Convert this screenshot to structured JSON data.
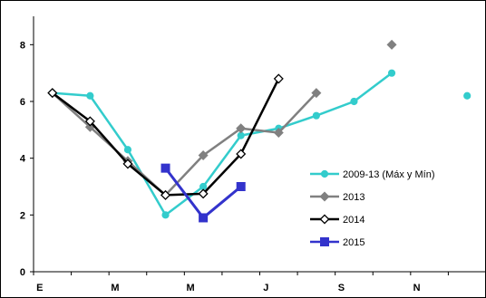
{
  "chart_data": {
    "type": "line",
    "title": "",
    "xlabel": "",
    "ylabel": "",
    "x_tick_labels": [
      "E",
      "M",
      "M",
      "J",
      "S",
      "N"
    ],
    "x": [
      1,
      2,
      3,
      4,
      5,
      6,
      7,
      8,
      9,
      10,
      11,
      12
    ],
    "ylim": [
      0,
      9
    ],
    "xlim": [
      0.5,
      12.5
    ],
    "y_ticks": [
      0,
      2,
      4,
      6,
      8
    ],
    "y_tick_labels": [
      "0",
      "2",
      "4",
      "6",
      "8"
    ],
    "grid": false,
    "legend_position": "right",
    "series": [
      {
        "name": "2009-13 (Máx y Mín)",
        "color": "#33CCCC",
        "marker": "circle",
        "values": [
          6.3,
          6.2,
          4.3,
          2.0,
          3.0,
          4.8,
          5.05,
          5.5,
          6.0,
          7.0,
          null,
          6.2
        ]
      },
      {
        "name": "2013",
        "color": "#808080",
        "marker": "diamond",
        "values": [
          6.3,
          5.1,
          3.9,
          2.7,
          4.1,
          5.05,
          4.9,
          6.3,
          null,
          8.0,
          null,
          null
        ]
      },
      {
        "name": "2014",
        "color": "#000000",
        "marker": "diamond-open",
        "values": [
          6.3,
          5.3,
          3.8,
          2.7,
          2.75,
          4.15,
          6.8,
          null,
          null,
          null,
          null,
          null
        ]
      },
      {
        "name": "2015",
        "color": "#3333CC",
        "marker": "square",
        "values": [
          null,
          null,
          null,
          3.65,
          1.9,
          3.0,
          null,
          null,
          null,
          null,
          null,
          null
        ]
      }
    ]
  }
}
